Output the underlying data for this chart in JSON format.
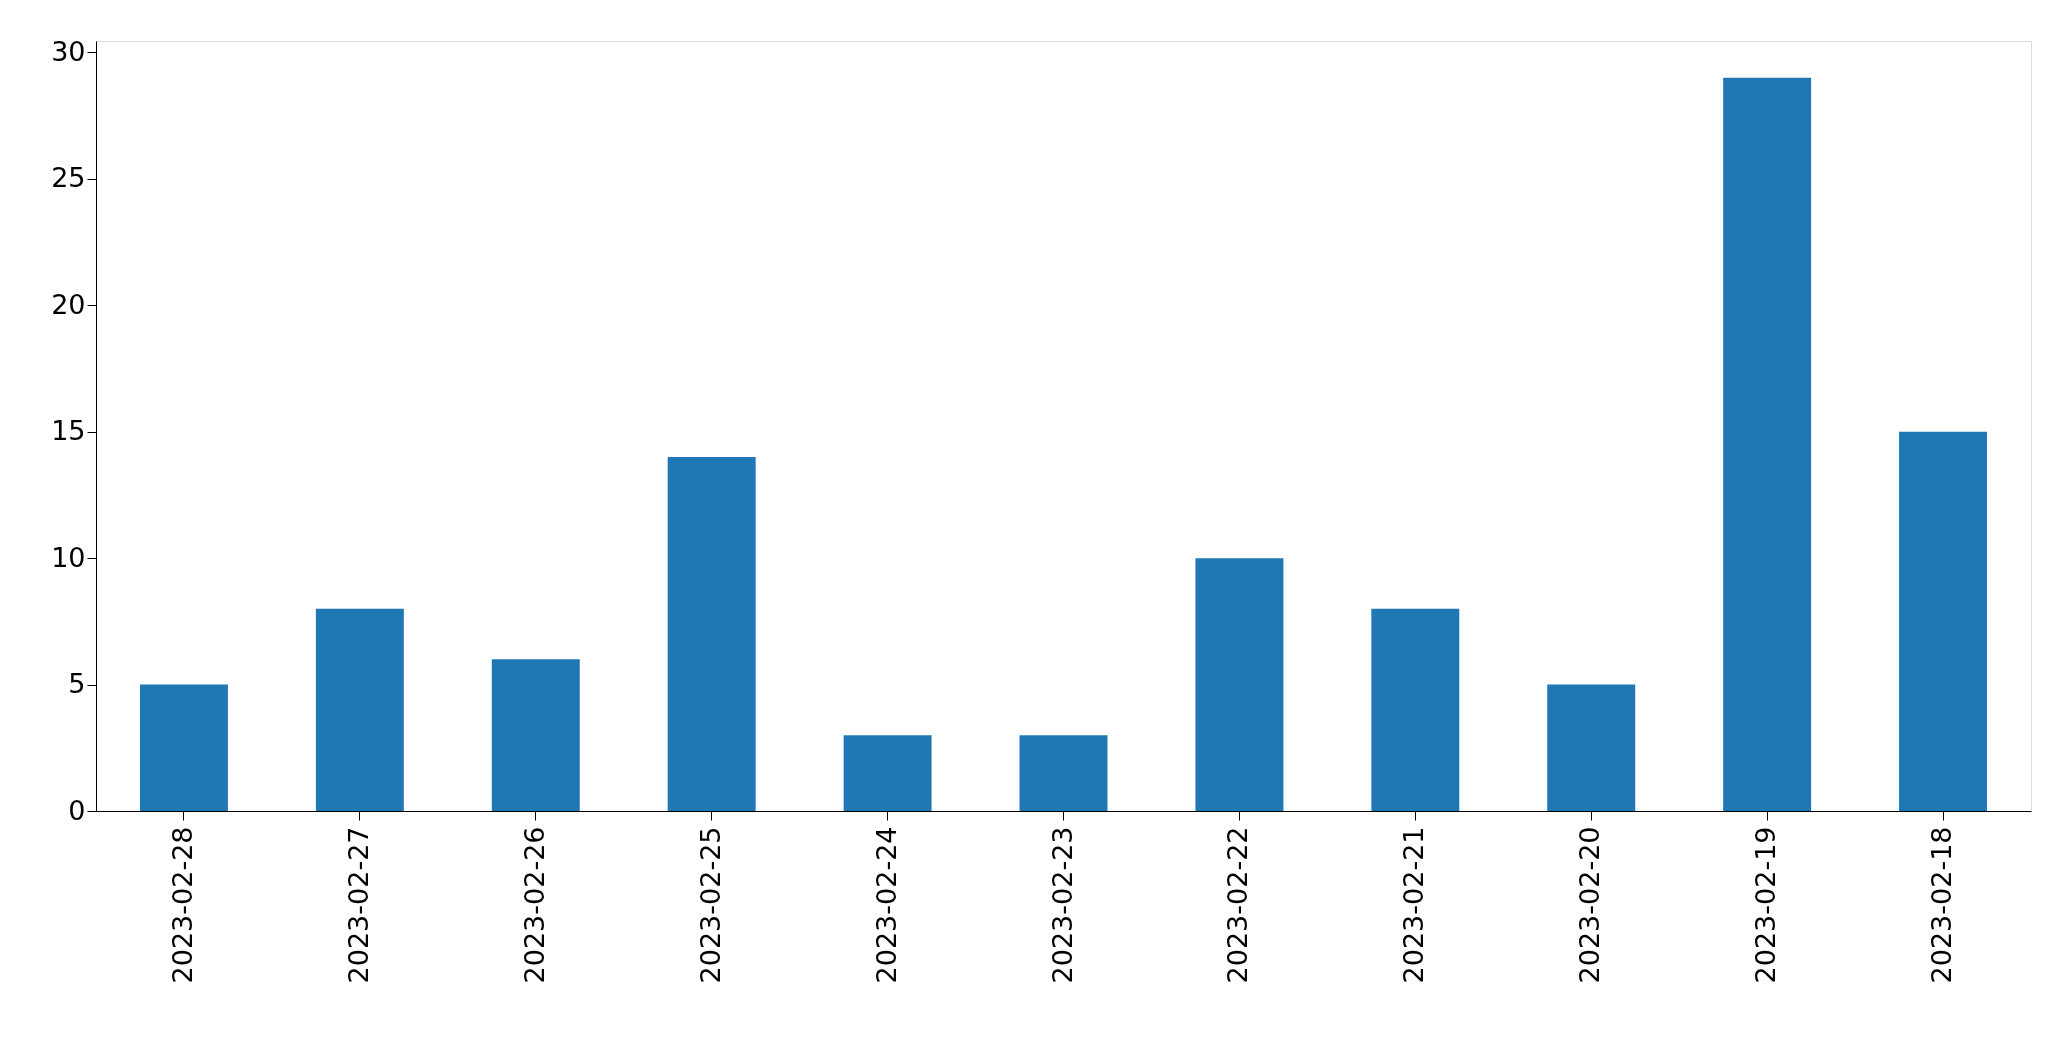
{
  "chart_data": {
    "type": "bar",
    "categories": [
      "2023-02-28",
      "2023-02-27",
      "2023-02-26",
      "2023-02-25",
      "2023-02-24",
      "2023-02-23",
      "2023-02-22",
      "2023-02-21",
      "2023-02-20",
      "2023-02-19",
      "2023-02-18"
    ],
    "values": [
      5,
      8,
      6,
      14,
      3,
      3,
      10,
      8,
      5,
      29,
      15
    ],
    "color": "#1f77b4",
    "ylim": [
      0,
      30.45
    ],
    "yticks": [
      0,
      5,
      10,
      15,
      20,
      25,
      30
    ],
    "grid": false
  }
}
